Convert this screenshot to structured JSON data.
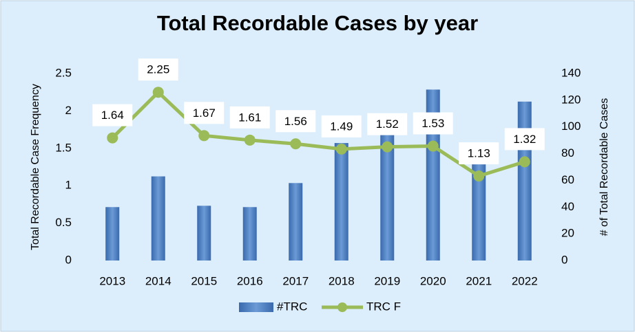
{
  "chart_data": {
    "type": "combo",
    "title": "Total Recordable Cases by year",
    "y_label": "Total Recordable Case Frequency",
    "y2_label": "# of Total Recordable Cases",
    "categories": [
      "2013",
      "2014",
      "2015",
      "2016",
      "2017",
      "2018",
      "2019",
      "2020",
      "2021",
      "2022"
    ],
    "series": [
      {
        "name": "#TRC",
        "type": "bar",
        "axis": "y2",
        "color": "#4a7cc0",
        "values": [
          40,
          63,
          41,
          40,
          58,
          88,
          95,
          128,
          72,
          119
        ]
      },
      {
        "name": "TRC F",
        "type": "line",
        "axis": "y",
        "color": "#9bbb59",
        "values": [
          1.64,
          2.25,
          1.67,
          1.61,
          1.56,
          1.49,
          1.52,
          1.53,
          1.13,
          1.32
        ]
      }
    ],
    "ylim": [
      0,
      2.5
    ],
    "yticks": [
      0,
      0.5,
      1,
      1.5,
      2,
      2.5
    ],
    "y2lim": [
      0,
      140
    ],
    "y2ticks": [
      0,
      20,
      40,
      60,
      80,
      100,
      120,
      140
    ],
    "legend": "bottom"
  }
}
